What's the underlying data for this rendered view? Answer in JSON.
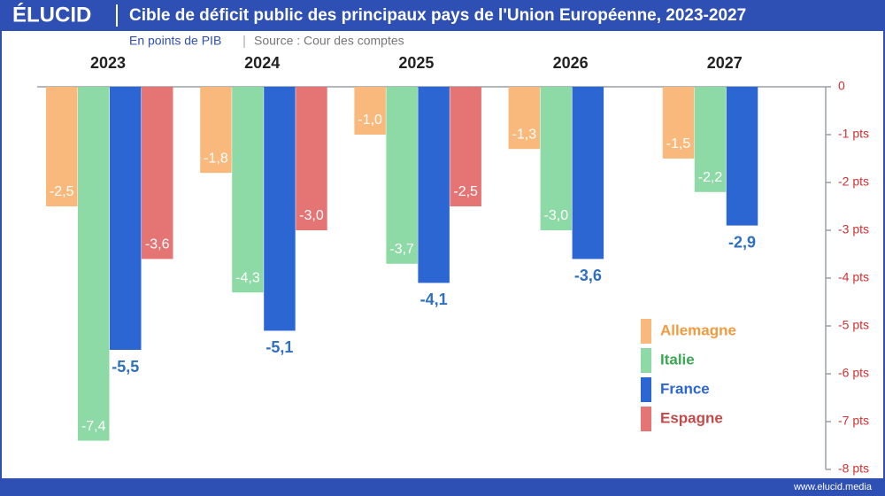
{
  "brand": "ÉLUCID",
  "website": "www.elucid.media",
  "chart_data": {
    "type": "bar",
    "title": "Cible de déficit public des principaux pays de l'Union Européenne, 2023-2027",
    "subtitle": "En points de PIB",
    "source": "Source : Cour des comptes",
    "categories": [
      "2023",
      "2024",
      "2025",
      "2026",
      "2027"
    ],
    "series": [
      {
        "name": "Allemagne",
        "color": "#f9b97c",
        "label_color": "#ffffff",
        "legend_text_color": "#f19a3e",
        "values": [
          -2.5,
          -1.8,
          -1.0,
          -1.3,
          -1.5
        ],
        "value_labels": [
          "-2,5",
          "-1,8",
          "-1,0",
          "-1,3",
          "-1,5"
        ]
      },
      {
        "name": "Italie",
        "color": "#8edaa6",
        "label_color": "#ffffff",
        "legend_text_color": "#3aa852",
        "values": [
          -7.4,
          -4.3,
          -3.7,
          -3.0,
          -2.2
        ],
        "value_labels": [
          "-7,4",
          "-4,3",
          "-3,7",
          "-3,0",
          "-2,2"
        ]
      },
      {
        "name": "France",
        "color": "#2b66d3",
        "label_color": "#2e6fc0",
        "legend_text_color": "#2b66d3",
        "values": [
          -5.5,
          -5.1,
          -4.1,
          -3.6,
          -2.9
        ],
        "value_labels": [
          "-5,5",
          "-5,1",
          "-4,1",
          "-3,6",
          "-2,9"
        ]
      },
      {
        "name": "Espagne",
        "color": "#e57575",
        "label_color": "#ffffff",
        "legend_text_color": "#c24a4a",
        "values": [
          -3.6,
          -3.0,
          -2.5,
          null,
          null
        ],
        "value_labels": [
          "-3,6",
          "-3,0",
          "-2,5",
          null,
          null
        ]
      }
    ],
    "ylim": [
      -8,
      0
    ],
    "yticks": [
      0,
      {
        "value": -1,
        "label": "-1 pts"
      },
      {
        "value": -2,
        "label": "-2 pts"
      },
      {
        "value": -3,
        "label": "-3 pts"
      },
      {
        "value": -4,
        "label": "-4 pts"
      },
      {
        "value": -5,
        "label": "-5 pts"
      },
      {
        "value": -6,
        "label": "-6 pts"
      },
      {
        "value": -7,
        "label": "-7 pts"
      },
      {
        "value": -8,
        "label": "-8 pts"
      }
    ],
    "y_axis_side": "right",
    "legend": "lower right",
    "grid": false
  }
}
